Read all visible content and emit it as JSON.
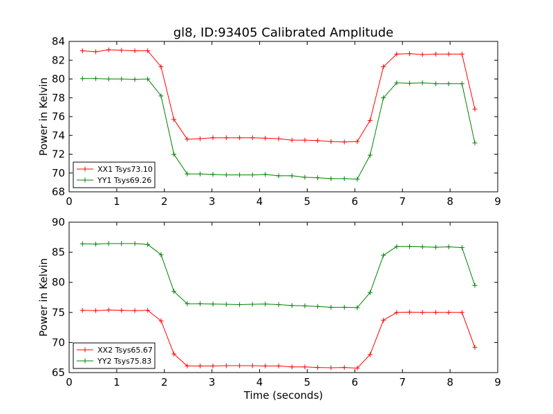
{
  "figure": {
    "title": "gl8, ID:93405 Calibrated Amplitude"
  },
  "chart_data": [
    {
      "type": "line",
      "title": "gl8, ID:93405 Calibrated Amplitude",
      "xlabel": "",
      "ylabel": "Power in Kelvin",
      "xlim": [
        0,
        9
      ],
      "ylim": [
        68,
        84
      ],
      "xticks": [
        0,
        1,
        2,
        3,
        4,
        5,
        6,
        7,
        8,
        9
      ],
      "yticks": [
        68,
        70,
        72,
        74,
        76,
        78,
        80,
        82,
        84
      ],
      "grid": false,
      "legend": "lower-left",
      "x": [
        0.28,
        0.56,
        0.83,
        1.1,
        1.38,
        1.65,
        1.93,
        2.2,
        2.48,
        2.75,
        3.02,
        3.3,
        3.58,
        3.85,
        4.12,
        4.4,
        4.68,
        4.95,
        5.22,
        5.5,
        5.78,
        6.05,
        6.32,
        6.6,
        6.88,
        7.15,
        7.42,
        7.7,
        7.97,
        8.25,
        8.52
      ],
      "series": [
        {
          "name": "XX1 Tsys73.10",
          "color": "#ff0000",
          "values": [
            83.0,
            82.9,
            83.1,
            83.05,
            83.0,
            83.0,
            81.3,
            75.7,
            73.6,
            73.65,
            73.75,
            73.75,
            73.75,
            73.75,
            73.7,
            73.65,
            73.5,
            73.5,
            73.45,
            73.35,
            73.3,
            73.35,
            75.6,
            81.3,
            82.65,
            82.7,
            82.6,
            82.65,
            82.65,
            82.65,
            76.8
          ]
        },
        {
          "name": "YY1 Tsys69.26",
          "color": "#008000",
          "values": [
            80.05,
            80.05,
            80.0,
            80.0,
            79.95,
            80.0,
            78.2,
            72.0,
            69.9,
            69.9,
            69.85,
            69.8,
            69.8,
            69.8,
            69.85,
            69.7,
            69.7,
            69.55,
            69.5,
            69.4,
            69.4,
            69.35,
            71.9,
            78.0,
            79.6,
            79.55,
            79.6,
            79.5,
            79.5,
            79.5,
            73.2
          ]
        }
      ]
    },
    {
      "type": "line",
      "title": "",
      "xlabel": "Time (seconds)",
      "ylabel": "Power in Kelvin",
      "xlim": [
        0,
        9
      ],
      "ylim": [
        65,
        90
      ],
      "xticks": [
        0,
        1,
        2,
        3,
        4,
        5,
        6,
        7,
        8,
        9
      ],
      "yticks": [
        65,
        70,
        75,
        80,
        85,
        90
      ],
      "grid": false,
      "legend": "lower-left",
      "x": [
        0.28,
        0.56,
        0.83,
        1.1,
        1.38,
        1.65,
        1.93,
        2.2,
        2.48,
        2.75,
        3.02,
        3.3,
        3.58,
        3.85,
        4.12,
        4.4,
        4.68,
        4.95,
        5.22,
        5.5,
        5.78,
        6.05,
        6.32,
        6.6,
        6.88,
        7.15,
        7.42,
        7.7,
        7.97,
        8.25,
        8.52
      ],
      "series": [
        {
          "name": "XX2 Tsys65.67",
          "color": "#ff0000",
          "values": [
            75.35,
            75.3,
            75.4,
            75.35,
            75.3,
            75.35,
            73.6,
            68.1,
            66.1,
            66.1,
            66.1,
            66.15,
            66.15,
            66.15,
            66.1,
            66.1,
            65.95,
            65.95,
            65.85,
            65.8,
            65.85,
            65.75,
            68.0,
            73.7,
            75.0,
            75.05,
            75.0,
            75.0,
            75.0,
            75.0,
            69.2
          ]
        },
        {
          "name": "YY2 Tsys75.83",
          "color": "#008000",
          "values": [
            86.4,
            86.35,
            86.45,
            86.45,
            86.45,
            86.3,
            84.6,
            78.5,
            76.45,
            76.45,
            76.4,
            76.35,
            76.3,
            76.35,
            76.4,
            76.3,
            76.15,
            76.1,
            76.0,
            75.85,
            75.85,
            75.8,
            78.3,
            84.5,
            85.95,
            85.95,
            85.9,
            85.85,
            85.9,
            85.8,
            79.5
          ]
        }
      ]
    }
  ]
}
